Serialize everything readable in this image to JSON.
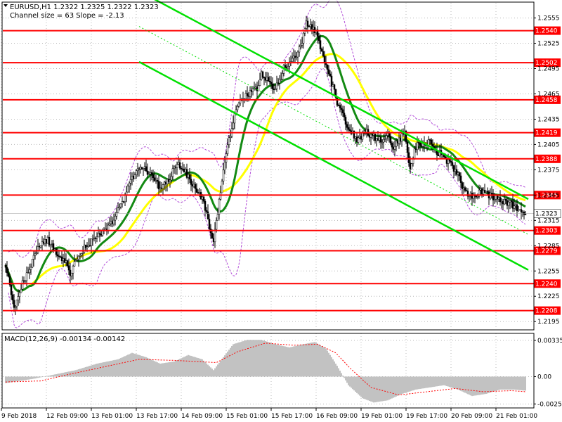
{
  "colors": {
    "background": "#ffffff",
    "grid": "#b8b8b8",
    "candle": "#000000",
    "level": "#ff0000",
    "channel": "#00e000",
    "ma_fast": "#138a13",
    "ma_slow": "#ffff00",
    "bands": "#b24bd9",
    "macd_hist": "#b4b4b4",
    "macd_signal": "#ff0000"
  },
  "chart_data": [
    {
      "type": "candlestick",
      "info_line": "EURUSD,H1  1.2322 1.2325 1.2322 1.2323",
      "channel_label": "Channel size = 63 Slope = -2.13",
      "ylim": [
        1.2186,
        1.2573
      ],
      "y_ticks": [
        "1.2555",
        "1.2525",
        "1.2495",
        "1.2465",
        "1.2435",
        "1.2405",
        "1.2375",
        "1.2345",
        "1.2315",
        "1.2285",
        "1.2255",
        "1.2225",
        "1.2195"
      ],
      "x_ticks": [
        "9 Feb 2018",
        "12 Feb 09:00",
        "13 Feb 01:00",
        "13 Feb 17:00",
        "14 Feb 09:00",
        "15 Feb 01:00",
        "15 Feb 17:00",
        "16 Feb 09:00",
        "19 Feb 01:00",
        "19 Feb 17:00",
        "20 Feb 09:00",
        "21 Feb 01:00"
      ],
      "levels": [
        "1.2540",
        "1.2502",
        "1.2458",
        "1.2419",
        "1.2388",
        "1.2345",
        "1.2303",
        "1.2279",
        "1.2240",
        "1.2208"
      ],
      "current_price": "1.2323",
      "price_path": [
        [
          0,
          1.2262
        ],
        [
          6,
          1.221
        ],
        [
          12,
          1.224
        ],
        [
          18,
          1.2262
        ],
        [
          24,
          1.2285
        ],
        [
          30,
          1.2292
        ],
        [
          36,
          1.2275
        ],
        [
          42,
          1.2268
        ],
        [
          46,
          1.225
        ],
        [
          52,
          1.2276
        ],
        [
          58,
          1.2285
        ],
        [
          64,
          1.2294
        ],
        [
          70,
          1.23
        ],
        [
          76,
          1.2312
        ],
        [
          80,
          1.2328
        ],
        [
          84,
          1.234
        ],
        [
          88,
          1.2356
        ],
        [
          92,
          1.2372
        ],
        [
          98,
          1.2378
        ],
        [
          104,
          1.2366
        ],
        [
          110,
          1.2354
        ],
        [
          116,
          1.2362
        ],
        [
          122,
          1.2384
        ],
        [
          128,
          1.2372
        ],
        [
          134,
          1.2354
        ],
        [
          140,
          1.2342
        ],
        [
          144,
          1.2315
        ],
        [
          148,
          1.229
        ],
        [
          152,
          1.2338
        ],
        [
          156,
          1.2385
        ],
        [
          160,
          1.2418
        ],
        [
          164,
          1.245
        ],
        [
          170,
          1.2462
        ],
        [
          176,
          1.2468
        ],
        [
          180,
          1.2472
        ],
        [
          182,
          1.249
        ],
        [
          186,
          1.2482
        ],
        [
          190,
          1.247
        ],
        [
          194,
          1.2476
        ],
        [
          198,
          1.2496
        ],
        [
          202,
          1.25
        ],
        [
          206,
          1.2508
        ],
        [
          210,
          1.252
        ],
        [
          214,
          1.2548
        ],
        [
          218,
          1.2545
        ],
        [
          222,
          1.2535
        ],
        [
          224,
          1.252
        ],
        [
          228,
          1.25
        ],
        [
          232,
          1.2478
        ],
        [
          236,
          1.2455
        ],
        [
          240,
          1.244
        ],
        [
          244,
          1.2425
        ],
        [
          250,
          1.241
        ],
        [
          256,
          1.242
        ],
        [
          262,
          1.2414
        ],
        [
          268,
          1.241
        ],
        [
          272,
          1.2418
        ],
        [
          276,
          1.24
        ],
        [
          280,
          1.241
        ],
        [
          284,
          1.242
        ],
        [
          286,
          1.2392
        ],
        [
          288,
          1.2375
        ],
        [
          290,
          1.2392
        ],
        [
          294,
          1.2408
        ],
        [
          298,
          1.2402
        ],
        [
          302,
          1.241
        ],
        [
          306,
          1.2396
        ],
        [
          310,
          1.2394
        ],
        [
          314,
          1.2386
        ],
        [
          318,
          1.238
        ],
        [
          322,
          1.2368
        ],
        [
          326,
          1.2352
        ],
        [
          330,
          1.2346
        ],
        [
          334,
          1.2344
        ],
        [
          338,
          1.235
        ],
        [
          342,
          1.2346
        ],
        [
          346,
          1.2343
        ],
        [
          350,
          1.2342
        ],
        [
          354,
          1.2338
        ],
        [
          358,
          1.2336
        ],
        [
          362,
          1.2332
        ],
        [
          366,
          1.2325
        ],
        [
          370,
          1.2323
        ]
      ],
      "macd": {
        "label": "MACD(12,26,9) -0.00134 -0.00142",
        "ylim": [
          -0.0029,
          0.004
        ],
        "y_ticks": [
          "0.00335",
          "0.00",
          "-0.00253"
        ],
        "histogram_path": [
          [
            0,
            -0.0006
          ],
          [
            20,
            -0.0002
          ],
          [
            35,
            0.0002
          ],
          [
            50,
            0.0006
          ],
          [
            65,
            0.0012
          ],
          [
            80,
            0.0016
          ],
          [
            90,
            0.0022
          ],
          [
            100,
            0.0018
          ],
          [
            110,
            0.0012
          ],
          [
            120,
            0.0014
          ],
          [
            130,
            0.002
          ],
          [
            140,
            0.0016
          ],
          [
            148,
            0.0006
          ],
          [
            155,
            0.0018
          ],
          [
            162,
            0.003
          ],
          [
            172,
            0.0034
          ],
          [
            182,
            0.0034
          ],
          [
            192,
            0.003
          ],
          [
            202,
            0.0027
          ],
          [
            212,
            0.003
          ],
          [
            220,
            0.0032
          ],
          [
            228,
            0.0026
          ],
          [
            236,
            0.001
          ],
          [
            244,
            -0.0008
          ],
          [
            254,
            -0.002
          ],
          [
            262,
            -0.0024
          ],
          [
            272,
            -0.0022
          ],
          [
            282,
            -0.0016
          ],
          [
            292,
            -0.0012
          ],
          [
            302,
            -0.001
          ],
          [
            312,
            -0.0008
          ],
          [
            322,
            -0.0012
          ],
          [
            332,
            -0.0018
          ],
          [
            342,
            -0.0016
          ],
          [
            352,
            -0.0012
          ],
          [
            362,
            -0.0012
          ],
          [
            370,
            -0.0013
          ]
        ],
        "signal_path": [
          [
            0,
            -0.0005
          ],
          [
            25,
            -0.0004
          ],
          [
            45,
            0.0002
          ],
          [
            70,
            0.0009
          ],
          [
            95,
            0.0016
          ],
          [
            120,
            0.0015
          ],
          [
            150,
            0.0013
          ],
          [
            165,
            0.0023
          ],
          [
            185,
            0.0031
          ],
          [
            205,
            0.0029
          ],
          [
            222,
            0.003
          ],
          [
            235,
            0.0022
          ],
          [
            245,
            0.0008
          ],
          [
            260,
            -0.001
          ],
          [
            280,
            -0.0017
          ],
          [
            300,
            -0.0014
          ],
          [
            320,
            -0.0011
          ],
          [
            340,
            -0.0014
          ],
          [
            360,
            -0.0013
          ],
          [
            370,
            -0.0014
          ]
        ]
      }
    }
  ]
}
